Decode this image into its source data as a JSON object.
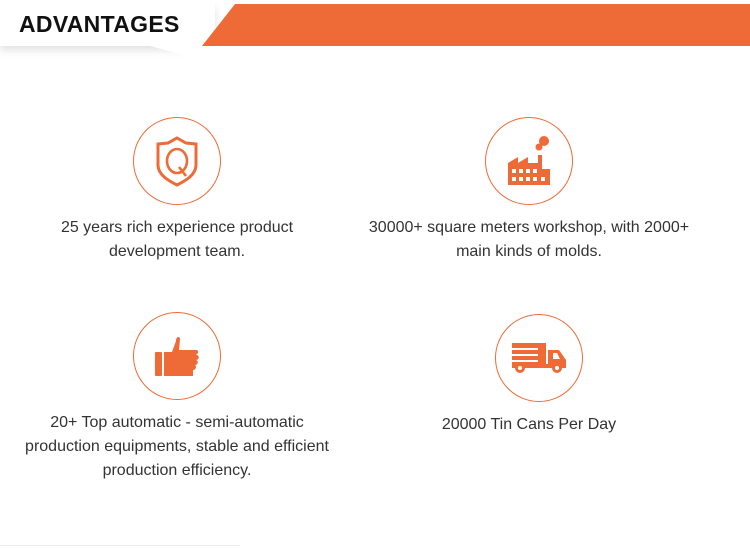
{
  "header": {
    "title": "ADVANTAGES"
  },
  "accent_color": "#ee6b38",
  "advantages": [
    {
      "icon": "quality-shield-icon",
      "text": "25 years rich experience product development team."
    },
    {
      "icon": "factory-icon",
      "text": "30000+ square meters workshop, with 2000+ main kinds of molds."
    },
    {
      "icon": "thumbs-up-icon",
      "text": "20+ Top automatic - semi-automatic production equipments, stable and efficient production efficiency."
    },
    {
      "icon": "delivery-truck-icon",
      "text": "20000 Tin Cans Per Day"
    }
  ]
}
